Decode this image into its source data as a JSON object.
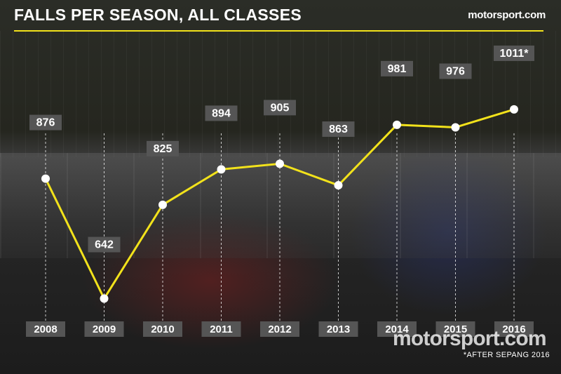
{
  "header": {
    "title": "FALLS PER SEASON, ALL CLASSES",
    "brand": "motorsport.com"
  },
  "footer": {
    "footnote": "*AFTER SEPANG 2016",
    "watermark": "motorsport.com"
  },
  "colors": {
    "accent": "#f2e21b",
    "label_bg": "#555555",
    "text": "#ffffff"
  },
  "chart_data": {
    "type": "line",
    "title": "FALLS PER SEASON, ALL CLASSES",
    "x": [
      "2008",
      "2009",
      "2010",
      "2011",
      "2012",
      "2013",
      "2014",
      "2015",
      "2016"
    ],
    "values": [
      876,
      642,
      825,
      894,
      905,
      863,
      981,
      976,
      1011
    ],
    "value_labels": [
      "876",
      "642",
      "825",
      "894",
      "905",
      "863",
      "981",
      "976",
      "1011*"
    ],
    "ylim": [
      640,
      1015
    ],
    "grid": false,
    "legend": "none"
  }
}
